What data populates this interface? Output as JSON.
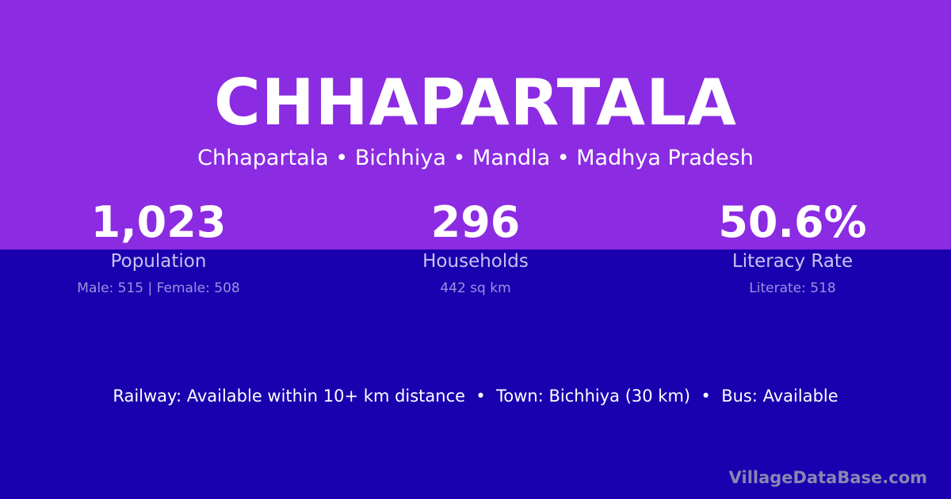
{
  "title": "CHHAPARTALA",
  "subtitle": "Chhapartala • Bichhiya • Mandla • Madhya Pradesh",
  "stats": [
    {
      "value": "1,023",
      "label": "Population",
      "sub": "Male: 515 | Female: 508"
    },
    {
      "value": "296",
      "label": "Households",
      "sub": "442 sq km"
    },
    {
      "value": "50.6%",
      "label": "Literacy Rate",
      "sub": "Literate: 518"
    }
  ],
  "transport": "Railway: Available within 10+ km distance  •  Town: Bichhiya (30 km)  •  Bus: Available",
  "brand": "VillageDataBase.com",
  "colors": {
    "top_band": "#8b2be2",
    "background": "#1a00ae"
  }
}
